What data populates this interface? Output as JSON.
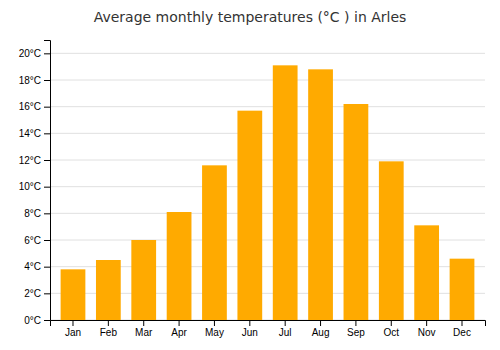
{
  "chart_data": {
    "type": "bar",
    "title": "Average monthly temperatures (°C ) in Arles",
    "categories": [
      "Jan",
      "Feb",
      "Mar",
      "Apr",
      "May",
      "Jun",
      "Jul",
      "Aug",
      "Sep",
      "Oct",
      "Nov",
      "Dec"
    ],
    "values": [
      3.8,
      4.5,
      6.0,
      8.1,
      11.6,
      15.7,
      19.1,
      18.8,
      16.2,
      11.9,
      7.1,
      4.6
    ],
    "color": "#FFAA00",
    "ylim": [
      0,
      21
    ],
    "yticks": [
      {
        "value": 0,
        "label": "0°C"
      },
      {
        "value": 2,
        "label": "2°C"
      },
      {
        "value": 4,
        "label": "4°C"
      },
      {
        "value": 6,
        "label": "6°C"
      },
      {
        "value": 8,
        "label": "8°C"
      },
      {
        "value": 10,
        "label": "10°C"
      },
      {
        "value": 12,
        "label": "12°C"
      },
      {
        "value": 14,
        "label": "14°C"
      },
      {
        "value": 16,
        "label": "16°C"
      },
      {
        "value": 18,
        "label": "18°C"
      },
      {
        "value": 20,
        "label": "20°C"
      }
    ],
    "grid": true
  }
}
